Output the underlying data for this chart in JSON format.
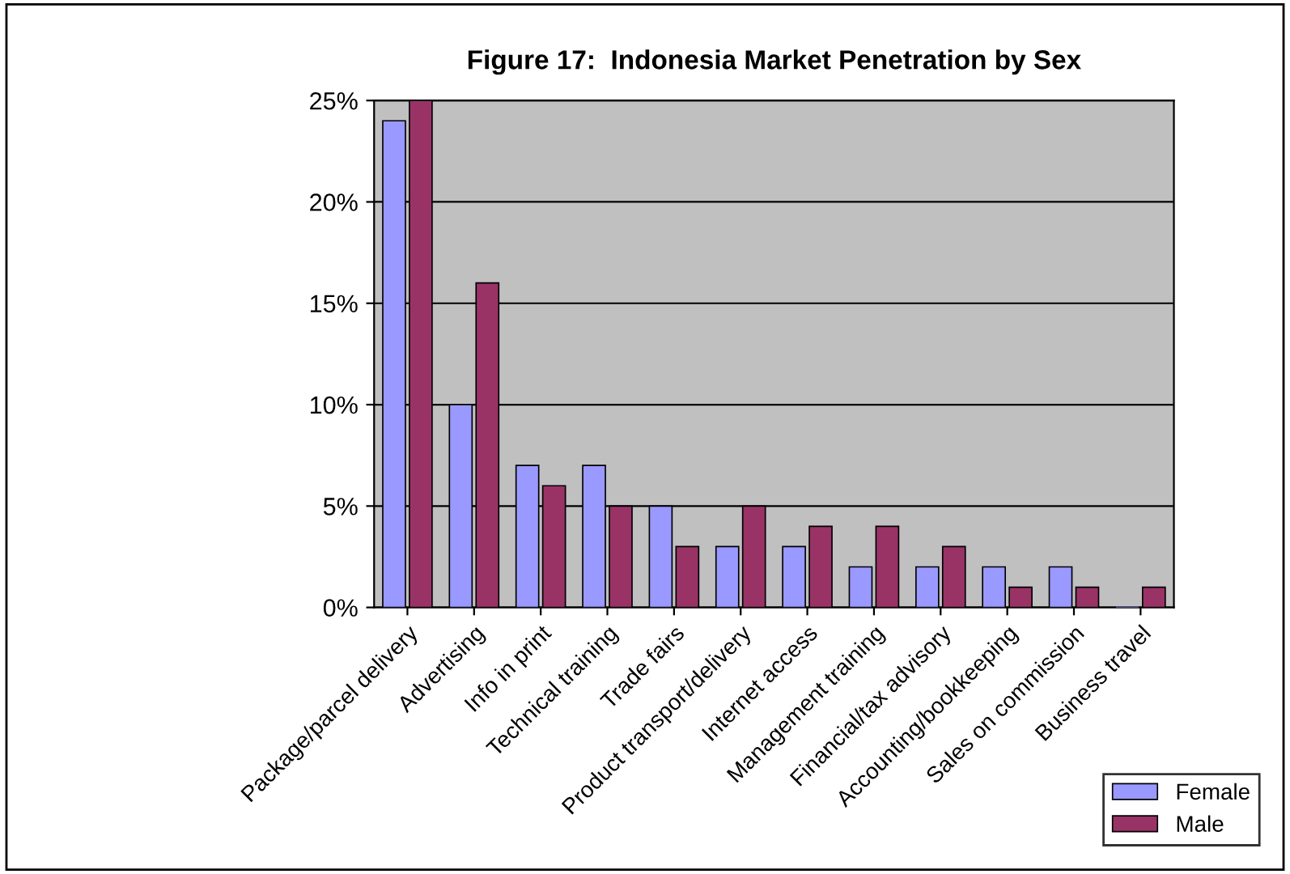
{
  "chart_data": {
    "type": "bar",
    "title": "Figure 17:  Indonesia Market Penetration by Sex",
    "categories": [
      "Package/parcel delivery",
      "Advertising",
      "Info in print",
      "Technical training",
      "Trade fairs",
      "Product transport/delivery",
      "Internet access",
      "Management training",
      "Financial/tax advisory",
      "Accounting/bookkeeping",
      "Sales on commission",
      "Business travel"
    ],
    "series": [
      {
        "name": "Female",
        "color": "#9999ff",
        "values": [
          24,
          10,
          7,
          7,
          5,
          3,
          3,
          2,
          2,
          2,
          2,
          0
        ]
      },
      {
        "name": "Male",
        "color": "#993366",
        "values": [
          25,
          16,
          6,
          5,
          3,
          5,
          4,
          4,
          3,
          1,
          1,
          1
        ]
      }
    ],
    "ylim": [
      0,
      25
    ],
    "yticks": [
      {
        "value": 0,
        "label": "0%"
      },
      {
        "value": 5,
        "label": "5%"
      },
      {
        "value": 10,
        "label": "10%"
      },
      {
        "value": 15,
        "label": "15%"
      },
      {
        "value": 20,
        "label": "20%"
      },
      {
        "value": 25,
        "label": "25%"
      }
    ],
    "grid": "y",
    "legend": "bottom right"
  }
}
